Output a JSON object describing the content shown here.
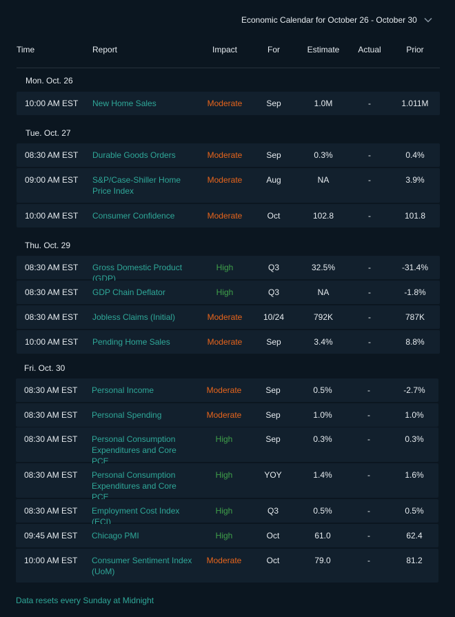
{
  "calendar": {
    "period_label": "Economic Calendar for October 26 - October 30"
  },
  "columns": {
    "time": "Time",
    "report": "Report",
    "impact": "Impact",
    "for": "For",
    "estimate": "Estimate",
    "actual": "Actual",
    "prior": "Prior"
  },
  "days": [
    {
      "label": "Mon. Oct. 26",
      "rows": [
        {
          "time": "10:00 AM EST",
          "report": "New Home Sales",
          "impact": "Moderate",
          "for": "Sep",
          "estimate": "1.0M",
          "actual": "-",
          "prior": "1.011M"
        }
      ]
    },
    {
      "label": "Tue. Oct. 27",
      "rows": [
        {
          "time": "08:30 AM EST",
          "report": "Durable Goods Orders",
          "impact": "Moderate",
          "for": "Sep",
          "estimate": "0.3%",
          "actual": "-",
          "prior": "0.4%"
        },
        {
          "time": "09:00 AM EST",
          "report": "S&P/Case-Shiller Home Price Index",
          "impact": "Moderate",
          "for": "Aug",
          "estimate": "NA",
          "actual": "-",
          "prior": "3.9%"
        },
        {
          "time": "10:00 AM EST",
          "report": "Consumer Confidence",
          "impact": "Moderate",
          "for": "Oct",
          "estimate": "102.8",
          "actual": "-",
          "prior": "101.8"
        }
      ]
    },
    {
      "label": "Thu. Oct. 29",
      "rows": [
        {
          "time": "08:30 AM EST",
          "report": "Gross Domestic Product (GDP)",
          "impact": "High",
          "for": "Q3",
          "estimate": "32.5%",
          "actual": "-",
          "prior": "-31.4%"
        },
        {
          "time": "08:30 AM EST",
          "report": "GDP Chain Deflator",
          "impact": "High",
          "for": "Q3",
          "estimate": "NA",
          "actual": "-",
          "prior": "-1.8%"
        },
        {
          "time": "08:30 AM EST",
          "report": "Jobless Claims (Initial)",
          "impact": "Moderate",
          "for": "10/24",
          "estimate": "792K",
          "actual": "-",
          "prior": "787K"
        },
        {
          "time": "10:00 AM EST",
          "report": "Pending Home Sales",
          "impact": "Moderate",
          "for": "Sep",
          "estimate": "3.4%",
          "actual": "-",
          "prior": "8.8%"
        }
      ]
    },
    {
      "label": "Fri. Oct. 30",
      "rows": [
        {
          "time": "08:30 AM EST",
          "report": "Personal Income",
          "impact": "Moderate",
          "for": "Sep",
          "estimate": "0.5%",
          "actual": "-",
          "prior": "-2.7%"
        },
        {
          "time": "08:30 AM EST",
          "report": "Personal Spending",
          "impact": "Moderate",
          "for": "Sep",
          "estimate": "1.0%",
          "actual": "-",
          "prior": "1.0%"
        },
        {
          "time": "08:30 AM EST",
          "report": "Personal Consumption Expenditures and Core PCE",
          "impact": "High",
          "for": "Sep",
          "estimate": "0.3%",
          "actual": "-",
          "prior": "0.3%"
        },
        {
          "time": "08:30 AM EST",
          "report": "Personal Consumption Expenditures and Core PCE",
          "impact": "High",
          "for": "YOY",
          "estimate": "1.4%",
          "actual": "-",
          "prior": "1.6%"
        },
        {
          "time": "08:30 AM EST",
          "report": "Employment Cost Index (ECI)",
          "impact": "High",
          "for": "Q3",
          "estimate": "0.5%",
          "actual": "-",
          "prior": "0.5%"
        },
        {
          "time": "09:45 AM EST",
          "report": "Chicago PMI",
          "impact": "High",
          "for": "Oct",
          "estimate": "61.0",
          "actual": "-",
          "prior": "62.4"
        },
        {
          "time": "10:00 AM EST",
          "report": "Consumer Sentiment Index (UoM)",
          "impact": "Moderate",
          "for": "Oct",
          "estimate": "79.0",
          "actual": "-",
          "prior": "81.2"
        }
      ]
    }
  ],
  "footer": {
    "note": "Data resets every Sunday at Midnight"
  },
  "colors": {
    "background": "#0b1620",
    "row_background": "#12202d",
    "report_link": "#2fa899",
    "impact_moderate": "#e8651c",
    "impact_high": "#3fa04a"
  }
}
